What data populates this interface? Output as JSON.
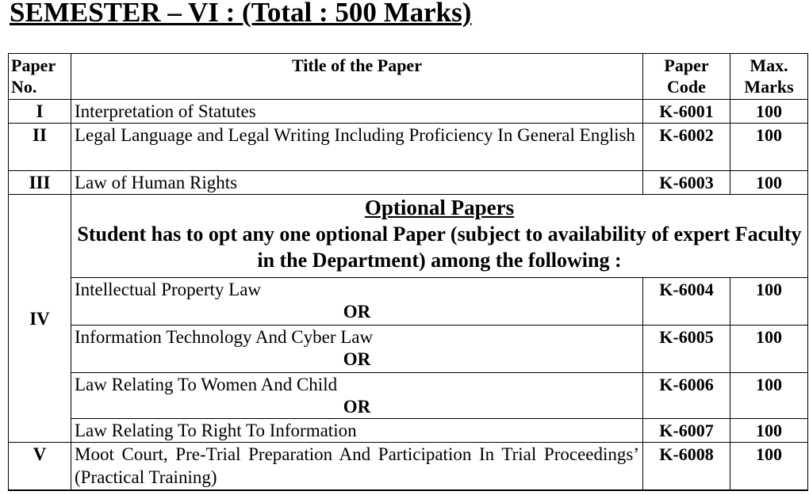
{
  "title": "SEMESTER – VI : (Total : 500 Marks)",
  "headers": {
    "paper_no": "Paper No.",
    "title": "Title of the Paper",
    "code": "Paper Code",
    "marks": "Max. Marks"
  },
  "rows": [
    {
      "no": "I",
      "title": "Interpretation of Statutes",
      "code": "K-6001",
      "marks": "100"
    },
    {
      "no": "II",
      "title": "Legal Language and Legal Writing Including Proficiency In General English",
      "code": "K-6002",
      "marks": "100"
    },
    {
      "no": "III",
      "title": "Law of Human Rights",
      "code": "K-6003",
      "marks": "100"
    }
  ],
  "optional": {
    "no": "IV",
    "heading": "Optional Papers",
    "note": "Student has to opt any one optional Paper (subject to availability of expert Faculty in the Department) among the following :",
    "or_label": "OR",
    "items": [
      {
        "title": "Intellectual Property Law",
        "code": "K-6004",
        "marks": "100"
      },
      {
        "title": "Information Technology And Cyber Law",
        "code": "K-6005",
        "marks": "100"
      },
      {
        "title": "Law Relating To Women And Child",
        "code": "K-6006",
        "marks": "100"
      },
      {
        "title": "Law Relating To Right To Information",
        "code": "K-6007",
        "marks": "100"
      }
    ]
  },
  "last_row": {
    "no": "V",
    "title": "Moot Court, Pre-Trial Preparation And Participation In Trial Proceedings’ (Practical Training)",
    "code": "K-6008",
    "marks": "100"
  }
}
